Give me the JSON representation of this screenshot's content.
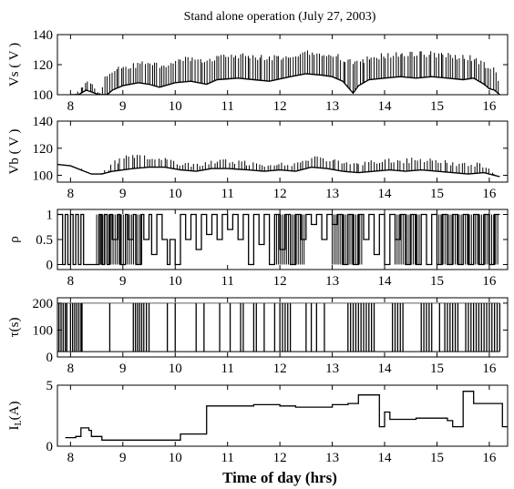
{
  "chart_data": {
    "type": "line",
    "title": "Stand alone operation (July  27, 2003)",
    "xlabel": "Time of day (hrs)",
    "xlim": [
      7.75,
      16.35
    ],
    "xticks": [
      8,
      9,
      10,
      11,
      12,
      13,
      14,
      15,
      16
    ],
    "panels": [
      {
        "id": "vs",
        "ylabel": "Vs ( V )",
        "ylim": [
          100,
          140
        ],
        "yticks": [
          100,
          120,
          140
        ],
        "style": "spiky",
        "spike_count": 180,
        "baseline": [
          [
            8.0,
            100
          ],
          [
            8.15,
            100
          ],
          [
            8.3,
            103
          ],
          [
            8.55,
            100
          ],
          [
            8.7,
            100
          ],
          [
            8.8,
            103
          ],
          [
            9.0,
            106
          ],
          [
            9.3,
            108
          ],
          [
            9.5,
            107
          ],
          [
            9.7,
            105
          ],
          [
            10.0,
            108
          ],
          [
            10.3,
            109
          ],
          [
            10.6,
            107
          ],
          [
            10.8,
            110
          ],
          [
            11.2,
            111
          ],
          [
            11.5,
            110
          ],
          [
            11.8,
            109
          ],
          [
            12.2,
            112
          ],
          [
            12.5,
            114
          ],
          [
            12.8,
            113
          ],
          [
            13.0,
            112
          ],
          [
            13.2,
            109
          ],
          [
            13.4,
            101
          ],
          [
            13.5,
            106
          ],
          [
            13.7,
            110
          ],
          [
            14.0,
            111
          ],
          [
            14.3,
            112
          ],
          [
            14.6,
            111
          ],
          [
            14.9,
            112
          ],
          [
            15.2,
            111
          ],
          [
            15.5,
            110
          ],
          [
            15.7,
            111
          ],
          [
            15.9,
            107
          ],
          [
            16.0,
            104
          ],
          [
            16.1,
            103
          ],
          [
            16.2,
            100
          ]
        ],
        "peaks": [
          [
            8.0,
            100
          ],
          [
            8.15,
            103
          ],
          [
            8.3,
            112
          ],
          [
            8.55,
            104
          ],
          [
            8.7,
            116
          ],
          [
            8.8,
            118
          ],
          [
            9.0,
            120
          ],
          [
            9.3,
            122
          ],
          [
            9.5,
            124
          ],
          [
            9.7,
            121
          ],
          [
            10.0,
            124
          ],
          [
            10.3,
            126
          ],
          [
            10.6,
            124
          ],
          [
            10.8,
            127
          ],
          [
            11.2,
            128
          ],
          [
            11.5,
            127
          ],
          [
            11.8,
            126
          ],
          [
            12.2,
            128
          ],
          [
            12.5,
            130
          ],
          [
            12.8,
            129
          ],
          [
            13.0,
            129
          ],
          [
            13.2,
            126
          ],
          [
            13.4,
            123
          ],
          [
            13.5,
            124
          ],
          [
            13.7,
            126
          ],
          [
            14.0,
            128
          ],
          [
            14.3,
            129
          ],
          [
            14.6,
            129
          ],
          [
            14.9,
            129
          ],
          [
            15.2,
            128
          ],
          [
            15.5,
            127
          ],
          [
            15.7,
            126
          ],
          [
            15.9,
            122
          ],
          [
            16.0,
            121
          ],
          [
            16.1,
            120
          ],
          [
            16.2,
            105
          ]
        ]
      },
      {
        "id": "vb",
        "ylabel": "Vb ( V )",
        "ylim": [
          95,
          140
        ],
        "yticks": [
          100,
          120,
          140
        ],
        "style": "spiky",
        "spike_count": 150,
        "baseline": [
          [
            7.75,
            108
          ],
          [
            8.0,
            107
          ],
          [
            8.2,
            104
          ],
          [
            8.4,
            101
          ],
          [
            8.6,
            101
          ],
          [
            8.8,
            103
          ],
          [
            9.0,
            104
          ],
          [
            9.2,
            105
          ],
          [
            9.5,
            106
          ],
          [
            9.8,
            106
          ],
          [
            10.1,
            104
          ],
          [
            10.4,
            103
          ],
          [
            10.7,
            105
          ],
          [
            11.0,
            105
          ],
          [
            11.4,
            104
          ],
          [
            11.7,
            103
          ],
          [
            12.0,
            104
          ],
          [
            12.3,
            103
          ],
          [
            12.6,
            106
          ],
          [
            12.9,
            105
          ],
          [
            13.2,
            103
          ],
          [
            13.5,
            102
          ],
          [
            13.8,
            103
          ],
          [
            14.1,
            104
          ],
          [
            14.4,
            103
          ],
          [
            14.7,
            104
          ],
          [
            15.0,
            103
          ],
          [
            15.3,
            102
          ],
          [
            15.6,
            101
          ],
          [
            15.9,
            102
          ],
          [
            16.1,
            100
          ],
          [
            16.2,
            99
          ]
        ],
        "peaks": [
          [
            7.75,
            108
          ],
          [
            8.0,
            107
          ],
          [
            8.2,
            105
          ],
          [
            8.4,
            102
          ],
          [
            8.6,
            102
          ],
          [
            8.8,
            110
          ],
          [
            9.0,
            115
          ],
          [
            9.2,
            116
          ],
          [
            9.5,
            115
          ],
          [
            9.8,
            113
          ],
          [
            10.1,
            111
          ],
          [
            10.4,
            109
          ],
          [
            10.7,
            112
          ],
          [
            11.0,
            112
          ],
          [
            11.4,
            111
          ],
          [
            11.7,
            110
          ],
          [
            12.0,
            110
          ],
          [
            12.3,
            109
          ],
          [
            12.6,
            115
          ],
          [
            12.9,
            114
          ],
          [
            13.2,
            112
          ],
          [
            13.5,
            110
          ],
          [
            13.8,
            112
          ],
          [
            14.1,
            113
          ],
          [
            14.4,
            113
          ],
          [
            14.7,
            113
          ],
          [
            15.0,
            112
          ],
          [
            15.3,
            111
          ],
          [
            15.6,
            110
          ],
          [
            15.9,
            109
          ],
          [
            16.1,
            104
          ],
          [
            16.2,
            101
          ]
        ]
      },
      {
        "id": "rho",
        "ylabel": "ρ",
        "ylim": [
          -0.1,
          1.1
        ],
        "yticks": [
          0,
          0.5,
          1
        ],
        "ytick_labels": [
          "0",
          "0.5",
          "1"
        ],
        "style": "step",
        "points": [
          [
            7.75,
            1
          ],
          [
            7.85,
            0
          ],
          [
            7.9,
            1
          ],
          [
            7.95,
            0
          ],
          [
            8.0,
            1
          ],
          [
            8.05,
            0
          ],
          [
            8.1,
            1
          ],
          [
            8.15,
            0
          ],
          [
            8.2,
            1
          ],
          [
            8.25,
            0
          ],
          [
            8.55,
            1
          ],
          [
            8.6,
            0
          ],
          [
            8.65,
            1
          ],
          [
            8.7,
            0
          ],
          [
            8.75,
            1
          ],
          [
            8.8,
            0.5
          ],
          [
            8.9,
            1
          ],
          [
            8.95,
            0
          ],
          [
            9.05,
            1
          ],
          [
            9.1,
            0.5
          ],
          [
            9.2,
            1
          ],
          [
            9.25,
            0
          ],
          [
            9.35,
            1
          ],
          [
            9.4,
            0.5
          ],
          [
            9.5,
            1
          ],
          [
            9.55,
            0.2
          ],
          [
            9.65,
            1
          ],
          [
            9.75,
            0.5
          ],
          [
            9.85,
            0
          ],
          [
            9.9,
            0.5
          ],
          [
            10.0,
            0
          ],
          [
            10.1,
            1
          ],
          [
            10.2,
            0.5
          ],
          [
            10.3,
            1
          ],
          [
            10.4,
            0.3
          ],
          [
            10.5,
            1
          ],
          [
            10.6,
            0.6
          ],
          [
            10.7,
            1
          ],
          [
            10.8,
            0.5
          ],
          [
            10.9,
            1
          ],
          [
            11.0,
            0.7
          ],
          [
            11.1,
            1
          ],
          [
            11.2,
            0.5
          ],
          [
            11.3,
            1
          ],
          [
            11.4,
            0
          ],
          [
            11.5,
            1
          ],
          [
            11.6,
            0.4
          ],
          [
            11.7,
            1
          ],
          [
            11.8,
            0
          ],
          [
            11.9,
            1
          ],
          [
            12.0,
            0.3
          ],
          [
            12.1,
            1
          ],
          [
            12.2,
            0
          ],
          [
            12.3,
            1
          ],
          [
            12.4,
            0.5
          ],
          [
            12.5,
            1
          ],
          [
            12.6,
            0.8
          ],
          [
            12.7,
            1
          ],
          [
            12.8,
            0.5
          ],
          [
            12.9,
            1
          ],
          [
            13.0,
            0.8
          ],
          [
            13.1,
            1
          ],
          [
            13.2,
            0
          ],
          [
            13.3,
            1
          ],
          [
            13.4,
            0
          ],
          [
            13.5,
            1
          ],
          [
            13.6,
            0.5
          ],
          [
            13.7,
            1
          ],
          [
            13.8,
            0.2
          ],
          [
            13.9,
            1
          ],
          [
            14.0,
            0
          ],
          [
            14.1,
            1
          ],
          [
            14.2,
            0.5
          ],
          [
            14.3,
            1
          ],
          [
            14.4,
            0
          ],
          [
            14.5,
            1
          ],
          [
            14.6,
            0
          ],
          [
            14.7,
            1
          ],
          [
            14.8,
            0
          ],
          [
            14.9,
            1
          ],
          [
            15.0,
            0
          ],
          [
            15.1,
            1
          ],
          [
            15.2,
            0
          ],
          [
            15.3,
            1
          ],
          [
            15.4,
            0
          ],
          [
            15.5,
            1
          ],
          [
            15.6,
            0
          ],
          [
            15.7,
            1
          ],
          [
            15.8,
            0
          ],
          [
            15.9,
            1
          ],
          [
            16.0,
            0
          ],
          [
            16.1,
            1
          ],
          [
            16.2,
            1
          ]
        ],
        "dense_ranges": [
          [
            8.5,
            9.4
          ],
          [
            11.9,
            12.5
          ],
          [
            13.0,
            13.6
          ],
          [
            14.2,
            14.7
          ],
          [
            15.0,
            16.2
          ]
        ]
      },
      {
        "id": "tau",
        "ylabel": "τ(s)",
        "ylim": [
          0,
          220
        ],
        "yticks": [
          0,
          100,
          200
        ],
        "style": "pulses",
        "pulse_value": 200,
        "floor_value": 20,
        "pulse_times": [
          7.78,
          7.82,
          7.86,
          7.9,
          7.93,
          8.0,
          8.04,
          8.08,
          8.12,
          8.16,
          8.2,
          8.22,
          8.75,
          9.2,
          9.24,
          9.28,
          9.32,
          9.36,
          9.4,
          9.45,
          9.5,
          9.85,
          10.0,
          10.4,
          10.55,
          10.85,
          11.05,
          11.25,
          11.3,
          11.5,
          11.55,
          11.7,
          11.9,
          12.0,
          12.05,
          12.1,
          12.15,
          12.2,
          12.5,
          12.6,
          12.7,
          12.85,
          13.3,
          13.35,
          13.4,
          13.45,
          13.5,
          13.55,
          13.6,
          13.65,
          13.7,
          13.75,
          13.8,
          14.15,
          14.2,
          14.25,
          14.3,
          14.35,
          14.7,
          14.75,
          14.8,
          14.85,
          14.9,
          15.05,
          15.15,
          15.2,
          15.25,
          15.3,
          15.35,
          15.4,
          15.55,
          15.6,
          15.65,
          15.7,
          15.75,
          15.8,
          15.85,
          15.9,
          15.95,
          16.0,
          16.05,
          16.1,
          16.15,
          16.2
        ]
      },
      {
        "id": "il",
        "ylabel": "I",
        "ylabel_sub": "L",
        "ylabel_unit": "(A)",
        "ylim": [
          0,
          5
        ],
        "yticks": [
          0,
          5
        ],
        "style": "step",
        "points": [
          [
            7.9,
            0.7
          ],
          [
            8.1,
            0.8
          ],
          [
            8.2,
            1.5
          ],
          [
            8.35,
            1.3
          ],
          [
            8.4,
            0.8
          ],
          [
            8.6,
            0.5
          ],
          [
            10.0,
            0.5
          ],
          [
            10.1,
            1.0
          ],
          [
            10.6,
            3.3
          ],
          [
            11.0,
            3.3
          ],
          [
            11.5,
            3.4
          ],
          [
            12.0,
            3.3
          ],
          [
            12.3,
            3.2
          ],
          [
            12.7,
            3.2
          ],
          [
            13.0,
            3.4
          ],
          [
            13.3,
            3.5
          ],
          [
            13.5,
            4.2
          ],
          [
            13.7,
            4.2
          ],
          [
            13.9,
            1.6
          ],
          [
            14.0,
            2.8
          ],
          [
            14.1,
            2.2
          ],
          [
            14.6,
            2.3
          ],
          [
            15.2,
            2.1
          ],
          [
            15.3,
            1.6
          ],
          [
            15.5,
            4.5
          ],
          [
            15.7,
            3.5
          ],
          [
            16.2,
            3.5
          ],
          [
            16.25,
            1.6
          ],
          [
            16.35,
            1.6
          ]
        ]
      }
    ]
  }
}
